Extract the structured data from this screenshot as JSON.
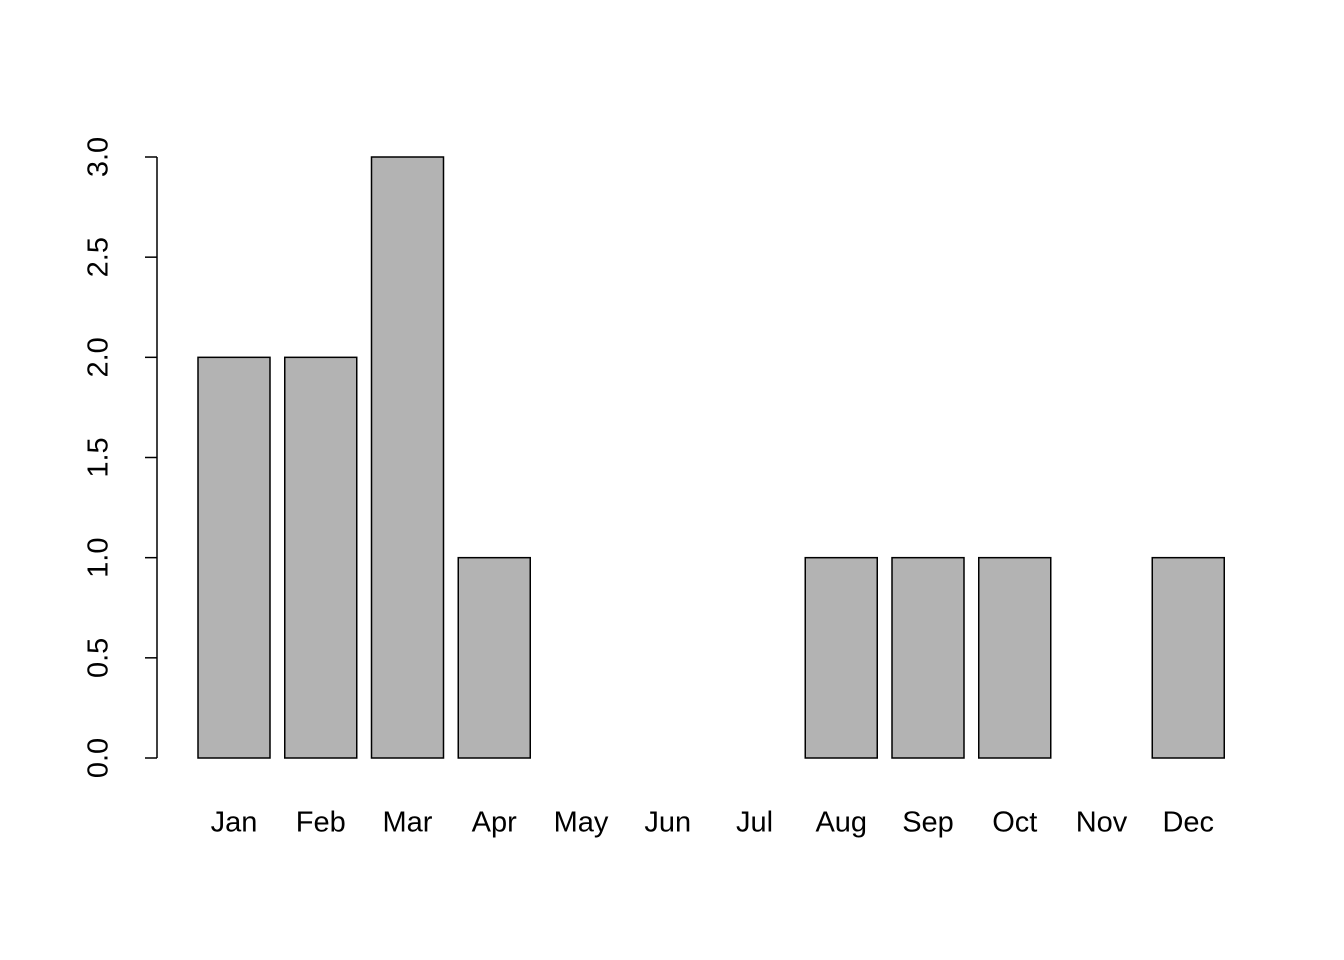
{
  "chart_data": {
    "type": "bar",
    "categories": [
      "Jan",
      "Feb",
      "Mar",
      "Apr",
      "May",
      "Jun",
      "Jul",
      "Aug",
      "Sep",
      "Oct",
      "Nov",
      "Dec"
    ],
    "values": [
      2,
      2,
      3,
      1,
      0,
      0,
      0,
      1,
      1,
      1,
      0,
      1
    ],
    "color": "#b3b3b3",
    "ylim": [
      0,
      3
    ],
    "yticks": [
      {
        "value": 0,
        "label": "0.0"
      },
      0.5,
      {
        "value": 1,
        "label": "1.0"
      },
      1.5,
      {
        "value": 2,
        "label": "2.0"
      },
      2.5,
      {
        "value": 3,
        "label": "3.0"
      }
    ]
  }
}
